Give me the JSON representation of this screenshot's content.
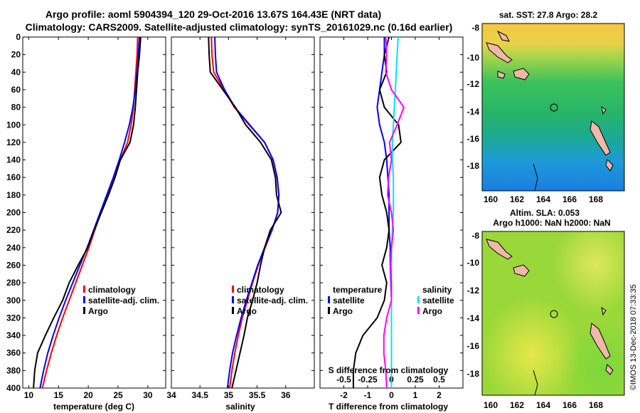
{
  "header": {
    "line1": "Argo profile: aoml 5904394_120 29-Oct-2016 13.67S 164.43E (NRT data)",
    "line2": "Climatology: CARS2009. Satellite-adjusted climatology: synTS_20161029.nc (0.16d earlier)"
  },
  "colors": {
    "climatology": "#ff0000",
    "satellite": "#0000ff",
    "argo": "#000000",
    "magenta": "#ff00ff",
    "cyan": "#00e5ee"
  },
  "chart_data": [
    {
      "type": "line",
      "title": "",
      "xlabel": "temperature (deg C)",
      "ylabel": "",
      "xlim": [
        9,
        33
      ],
      "ylim": [
        400,
        0
      ],
      "xticks": [
        "10",
        "15",
        "20",
        "25",
        "30"
      ],
      "xtick_values": [
        10,
        15,
        20,
        25,
        30
      ],
      "yticks": [
        "0",
        "20",
        "40",
        "60",
        "80",
        "100",
        "120",
        "140",
        "160",
        "180",
        "200",
        "220",
        "240",
        "260",
        "280",
        "300",
        "320",
        "340",
        "360",
        "380",
        "400"
      ],
      "y": [
        0,
        20,
        40,
        60,
        80,
        100,
        120,
        140,
        160,
        180,
        200,
        220,
        240,
        260,
        280,
        300,
        320,
        340,
        360,
        380,
        400
      ],
      "series": [
        {
          "name": "climatology",
          "color": "#ff0000",
          "values": [
            28.3,
            28.2,
            28.0,
            27.8,
            27.6,
            27.2,
            26.6,
            25.4,
            24.3,
            23.2,
            22.1,
            21.1,
            20.1,
            19.0,
            17.9,
            16.8,
            15.7,
            14.7,
            13.8,
            13.0,
            12.3
          ]
        },
        {
          "name": "satellite-adj. clim.",
          "color": "#0000ff",
          "values": [
            28.6,
            28.4,
            28.2,
            27.9,
            27.5,
            26.9,
            26.1,
            25.2,
            24.2,
            23.1,
            22.0,
            20.9,
            19.8,
            18.6,
            17.4,
            16.2,
            15.1,
            14.1,
            13.2,
            12.5,
            11.9
          ]
        },
        {
          "name": "Argo",
          "color": "#000000",
          "values": [
            28.8,
            28.6,
            28.3,
            28.1,
            27.9,
            27.6,
            27.0,
            25.4,
            24.5,
            23.4,
            22.2,
            21.0,
            19.9,
            18.3,
            16.8,
            15.7,
            14.2,
            12.8,
            11.5,
            11.0,
            10.8
          ]
        }
      ],
      "legend": [
        "climatology",
        "satellite-adj. clim.",
        "Argo"
      ]
    },
    {
      "type": "line",
      "title": "",
      "xlabel": "salinity",
      "ylabel": "",
      "xlim": [
        34,
        36.5
      ],
      "ylim": [
        400,
        0
      ],
      "xticks": [
        "34",
        "34.5",
        "35",
        "35.5",
        "36"
      ],
      "xtick_values": [
        34,
        34.5,
        35,
        35.5,
        36
      ],
      "y": [
        0,
        20,
        40,
        60,
        80,
        100,
        120,
        140,
        160,
        180,
        200,
        220,
        240,
        260,
        280,
        300,
        320,
        340,
        360,
        380,
        400
      ],
      "series": [
        {
          "name": "climatology",
          "color": "#ff0000",
          "values": [
            34.7,
            34.71,
            34.74,
            34.92,
            35.1,
            35.36,
            35.63,
            35.78,
            35.85,
            35.88,
            35.86,
            35.76,
            35.64,
            35.52,
            35.42,
            35.33,
            35.24,
            35.17,
            35.11,
            35.06,
            35.02
          ]
        },
        {
          "name": "satellite-adj. clim.",
          "color": "#0000ff",
          "values": [
            34.76,
            34.77,
            34.79,
            34.93,
            35.11,
            35.37,
            35.63,
            35.78,
            35.85,
            35.88,
            35.86,
            35.76,
            35.63,
            35.51,
            35.41,
            35.31,
            35.22,
            35.14,
            35.07,
            35.02,
            34.98
          ]
        },
        {
          "name": "Argo",
          "color": "#000000",
          "values": [
            34.65,
            34.66,
            34.68,
            34.9,
            35.12,
            35.3,
            35.56,
            35.75,
            35.82,
            35.84,
            35.92,
            35.73,
            35.63,
            35.56,
            35.5,
            35.42,
            35.33,
            35.27,
            35.2,
            35.13,
            35.06
          ]
        }
      ],
      "legend": [
        "climatology",
        "satellite-adj. clim.",
        "Argo"
      ]
    },
    {
      "type": "line",
      "title": "",
      "xlabel": "T difference from climatology",
      "xlabel2": "S difference from climatology",
      "xlim": [
        -3,
        3
      ],
      "ylim": [
        400,
        0
      ],
      "xticks": [
        "-2",
        "-1",
        "0",
        "1",
        "2"
      ],
      "xtick_values": [
        -2,
        -1,
        0,
        1,
        2
      ],
      "xticks_s": [
        "-0.5",
        "-0.25",
        "0",
        "0.25",
        "0.5"
      ],
      "xticks_s_values": [
        -0.5,
        -0.25,
        0,
        0.25,
        0.5
      ],
      "y": [
        0,
        20,
        40,
        60,
        80,
        100,
        120,
        140,
        160,
        180,
        200,
        220,
        240,
        260,
        280,
        300,
        320,
        340,
        360,
        380,
        400
      ],
      "series": [
        {
          "name": "temperature satellite",
          "color": "#0000ff",
          "values": [
            -0.3,
            -0.3,
            -0.4,
            -0.5,
            -0.6,
            -0.5,
            -0.3,
            -0.2,
            -0.15,
            -0.1,
            -0.1,
            -0.1,
            -0.05,
            -0.05,
            -0.02,
            0.0,
            0.0,
            0.0,
            0.0,
            0.0,
            0.0
          ]
        },
        {
          "name": "temperature Argo",
          "color": "#000000",
          "values": [
            -0.1,
            -0.3,
            -0.2,
            -0.5,
            -0.3,
            0.3,
            0.4,
            -0.3,
            -0.5,
            -0.4,
            -0.2,
            -0.1,
            -0.2,
            -0.4,
            -0.2,
            -0.3,
            -0.6,
            -1.2,
            -1.5,
            -1.6,
            -1.6
          ]
        },
        {
          "name": "salinity satellite",
          "color": "#00e5ee",
          "values": [
            0.07,
            0.06,
            0.05,
            0.04,
            0.03,
            0.02,
            0.01,
            0.01,
            0.02,
            0.02,
            0.02,
            0.01,
            0.0,
            0.0,
            0.0,
            0.0,
            0.0,
            0.0,
            0.0,
            0.0,
            0.0
          ]
        },
        {
          "name": "salinity Argo",
          "color": "#ff00ff",
          "values": [
            -0.06,
            -0.05,
            -0.06,
            0.0,
            0.13,
            0.06,
            -0.02,
            0.0,
            -0.03,
            -0.04,
            0.0,
            0.02,
            0.0,
            -0.01,
            0.0,
            0.0,
            -0.05,
            -0.08,
            -0.08,
            -0.06,
            -0.05
          ]
        }
      ],
      "legend_left_title": "temperature",
      "legend_right_title": "salinity",
      "legend_left": [
        "satellite",
        "Argo"
      ],
      "legend_right": [
        "satellite",
        "Argo"
      ]
    }
  ],
  "maps": {
    "sst": {
      "title": "sat. SST: 27.8 Argo: 28.2",
      "yticks": [
        "-8",
        "-10",
        "-12",
        "-14",
        "-16",
        "-18"
      ],
      "xticks": [
        "160",
        "162",
        "164",
        "166",
        "168"
      ]
    },
    "sla": {
      "title1": "Altim. SLA: 0.053",
      "title2": "Argo h1000: NaN h2000: NaN",
      "yticks": [
        "-8",
        "-10",
        "-12",
        "-14",
        "-16",
        "-18"
      ],
      "xticks": [
        "160",
        "162",
        "164",
        "166",
        "168"
      ]
    }
  },
  "footer": {
    "credit": "©IMOS 13-Dec-2018 07:33:35"
  }
}
